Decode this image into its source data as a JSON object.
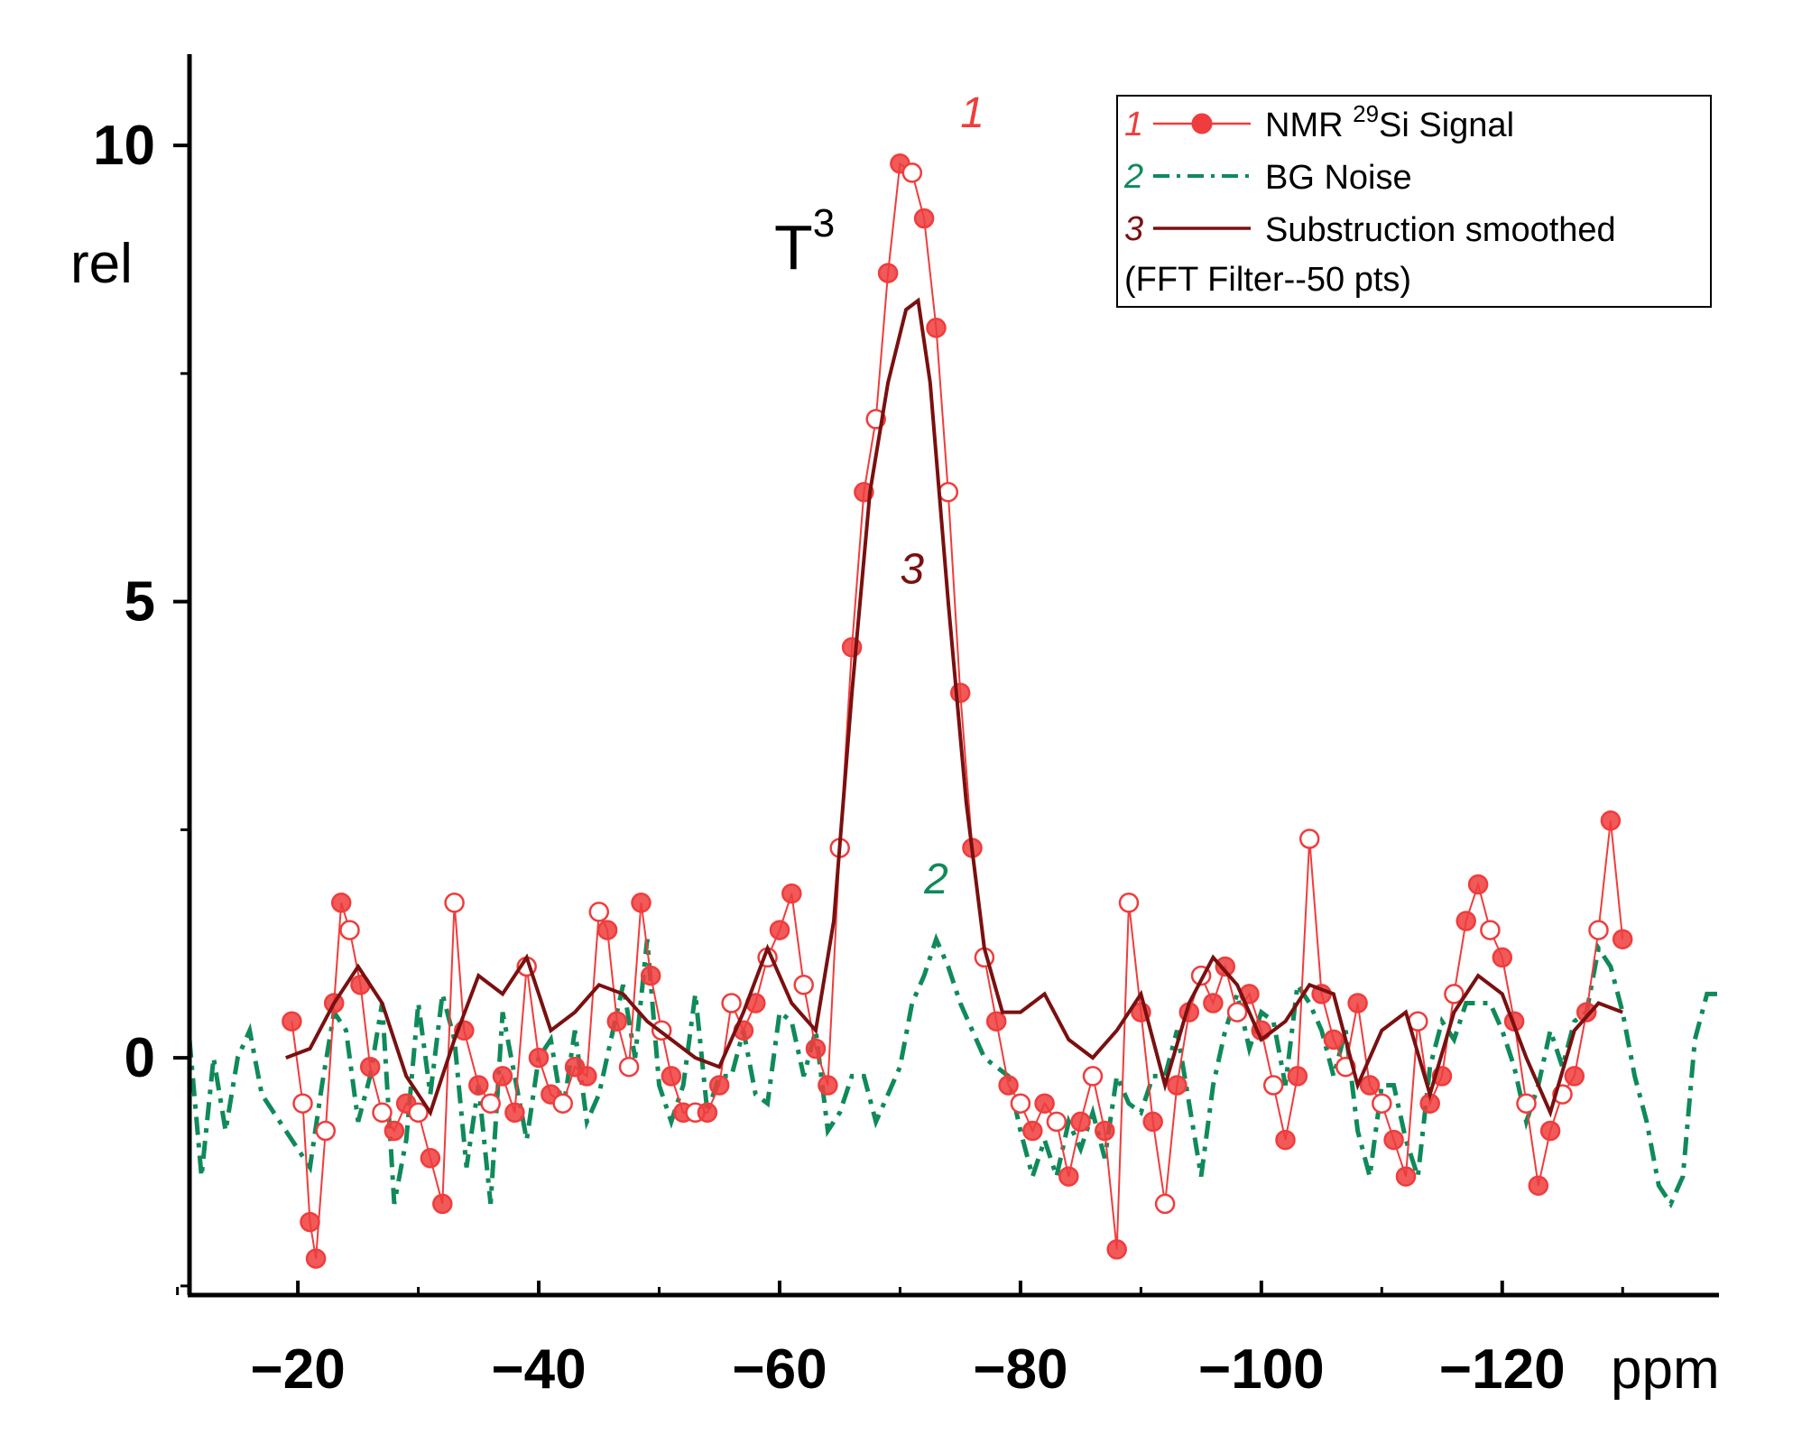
{
  "chart_data": {
    "type": "line",
    "title": "",
    "xlabel": "ppm",
    "ylabel": "rel",
    "xlim": [
      -11,
      -138
    ],
    "ylim": [
      -2.6,
      11.0
    ],
    "x_ticks": [
      -20,
      -40,
      -60,
      -80,
      -100,
      -120
    ],
    "x_tick_labels": [
      "−20",
      "−40",
      "−60",
      "−80",
      "−100",
      "−120"
    ],
    "y_ticks": [
      0,
      5,
      10
    ],
    "y_tick_labels": [
      "0",
      "5",
      "10"
    ],
    "annotation": {
      "text": "T",
      "superscript": "3",
      "x": -62,
      "y": 9.0
    },
    "series": [
      {
        "id": "1",
        "name": "NMR ",
        "name_sup": "29",
        "name_rest": "Si Signal",
        "color": "#f03c3c",
        "style": "line-circles",
        "label_pos": {
          "x": -75,
          "y": 10.2
        },
        "x": [
          -19.5,
          -20.4,
          -21.0,
          -21.5,
          -22.3,
          -23.0,
          -23.6,
          -24.3,
          -25.2,
          -26.0,
          -27.0,
          -28.0,
          -29.0,
          -30.0,
          -31.0,
          -32.0,
          -33.0,
          -33.8,
          -35.0,
          -36.0,
          -37.0,
          -38.0,
          -39.0,
          -40.0,
          -41.0,
          -42.0,
          -43.0,
          -44.0,
          -45.0,
          -45.7,
          -46.5,
          -47.5,
          -48.5,
          -49.3,
          -50.2,
          -51.0,
          -52.0,
          -53.0,
          -54.0,
          -55.0,
          -56.0,
          -57.0,
          -58.0,
          -59.0,
          -60.0,
          -61.0,
          -62.0,
          -63.0,
          -64.0,
          -65.0,
          -66.0,
          -67.0,
          -68.0,
          -69.0,
          -70.0,
          -71.0,
          -72.0,
          -73.0,
          -74.0,
          -75.0,
          -76.0,
          -77.0,
          -78.0,
          -79.0,
          -80.0,
          -81.0,
          -82.0,
          -83.0,
          -84.0,
          -85.0,
          -86.0,
          -87.0,
          -88.0,
          -89.0,
          -90.0,
          -91.0,
          -92.0,
          -93.0,
          -94.0,
          -95.0,
          -96.0,
          -97.0,
          -98.0,
          -99.0,
          -100.0,
          -101.0,
          -102.0,
          -103.0,
          -104.0,
          -105.0,
          -106.0,
          -107.0,
          -108.0,
          -109.0,
          -110.0,
          -111.0,
          -112.0,
          -113.0,
          -114.0,
          -115.0,
          -116.0,
          -117.0,
          -118.0,
          -119.0,
          -120.0,
          -121.0,
          -122.0,
          -123.0,
          -124.0,
          -125.0,
          -126.0,
          -127.0,
          -128.0,
          -129.0,
          -130.0
        ],
        "y": [
          0.4,
          -0.5,
          -1.8,
          -2.2,
          -0.8,
          0.6,
          1.7,
          1.4,
          0.8,
          -0.1,
          -0.6,
          -0.8,
          -0.5,
          -0.6,
          -1.1,
          -1.6,
          1.7,
          0.3,
          -0.3,
          -0.5,
          -0.2,
          -0.6,
          1.0,
          0.0,
          -0.4,
          -0.5,
          -0.1,
          -0.2,
          1.6,
          1.4,
          0.4,
          -0.1,
          1.7,
          0.9,
          0.3,
          -0.2,
          -0.6,
          -0.6,
          -0.6,
          -0.3,
          0.6,
          0.3,
          0.6,
          1.1,
          1.4,
          1.8,
          0.8,
          0.1,
          -0.3,
          2.3,
          4.5,
          6.2,
          7.0,
          8.6,
          9.8,
          9.7,
          9.2,
          8.0,
          6.2,
          4.0,
          2.3,
          1.1,
          0.4,
          -0.3,
          -0.5,
          -0.8,
          -0.5,
          -0.7,
          -1.3,
          -0.7,
          -0.2,
          -0.8,
          -2.1,
          1.7,
          0.5,
          -0.7,
          -1.6,
          -0.3,
          0.5,
          0.9,
          0.6,
          1.0,
          0.5,
          0.7,
          0.3,
          -0.3,
          -0.9,
          -0.2,
          2.4,
          0.7,
          0.2,
          -0.1,
          0.6,
          -0.3,
          -0.5,
          -0.9,
          -1.3,
          0.4,
          -0.5,
          -0.2,
          0.7,
          1.5,
          1.9,
          1.4,
          1.1,
          0.4,
          -0.5,
          -1.4,
          -0.8,
          -0.4,
          -0.2,
          0.5,
          1.4,
          2.6,
          1.3
        ],
        "legend_label_index": 0
      },
      {
        "id": "2",
        "name": "BG Noise",
        "color": "#0f8a5a",
        "style": "dash-dot",
        "label_pos": {
          "x": -72,
          "y": 1.8
        },
        "x": [
          -11.0,
          -12.0,
          -13.0,
          -14.0,
          -15.0,
          -16.0,
          -17.0,
          -18.0,
          -19.0,
          -20.0,
          -21.0,
          -22.0,
          -23.0,
          -24.0,
          -25.0,
          -26.0,
          -27.0,
          -28.0,
          -29.0,
          -30.0,
          -31.0,
          -32.0,
          -33.0,
          -34.0,
          -35.0,
          -36.0,
          -37.0,
          -38.0,
          -39.0,
          -40.0,
          -41.0,
          -42.0,
          -43.0,
          -44.0,
          -45.0,
          -46.0,
          -47.0,
          -48.0,
          -49.0,
          -50.0,
          -51.0,
          -52.0,
          -53.0,
          -54.0,
          -55.0,
          -56.0,
          -57.0,
          -58.0,
          -59.0,
          -60.0,
          -61.0,
          -62.0,
          -63.0,
          -64.0,
          -65.0,
          -66.0,
          -67.0,
          -68.0,
          -69.0,
          -70.0,
          -71.0,
          -72.0,
          -73.0,
          -74.0,
          -75.0,
          -76.0,
          -77.0,
          -78.0,
          -79.0,
          -80.0,
          -81.0,
          -82.0,
          -83.0,
          -84.0,
          -85.0,
          -86.0,
          -87.0,
          -88.0,
          -89.0,
          -90.0,
          -91.0,
          -92.0,
          -93.0,
          -94.0,
          -95.0,
          -96.0,
          -97.0,
          -98.0,
          -99.0,
          -100.0,
          -101.0,
          -102.0,
          -103.0,
          -104.0,
          -105.0,
          -106.0,
          -107.0,
          -108.0,
          -109.0,
          -110.0,
          -111.0,
          -112.0,
          -113.0,
          -114.0,
          -115.0,
          -116.0,
          -117.0,
          -118.0,
          -119.0,
          -120.0,
          -121.0,
          -122.0,
          -123.0,
          -124.0,
          -125.0,
          -126.0,
          -127.0,
          -128.0,
          -129.0,
          -130.0,
          -131.0,
          -132.0,
          -133.0,
          -134.0,
          -135.0,
          -136.0,
          -137.0,
          -138.0
        ],
        "y": [
          0.2,
          -1.3,
          0.0,
          -0.8,
          0.0,
          0.3,
          -0.4,
          -0.6,
          -0.8,
          -1.0,
          -1.2,
          -0.3,
          0.5,
          0.3,
          -0.7,
          -0.2,
          0.6,
          -1.6,
          -0.9,
          0.6,
          -0.4,
          0.7,
          0.2,
          -1.2,
          -0.3,
          -1.6,
          0.5,
          -0.2,
          -0.9,
          0.0,
          0.2,
          -0.6,
          0.3,
          -0.7,
          -0.4,
          0.2,
          0.8,
          0.0,
          1.3,
          -0.3,
          -0.7,
          -0.3,
          0.7,
          -0.6,
          -0.2,
          -0.2,
          0.3,
          -0.4,
          -0.5,
          0.5,
          0.4,
          -0.2,
          0.3,
          -0.8,
          -0.6,
          -0.2,
          -0.2,
          -0.7,
          -0.4,
          -0.1,
          0.6,
          0.9,
          1.3,
          1.0,
          0.6,
          0.3,
          0.0,
          -0.1,
          -0.2,
          -0.8,
          -1.3,
          -0.9,
          -1.3,
          -0.7,
          -1.0,
          -0.6,
          -1.1,
          -0.2,
          -0.5,
          -0.6,
          -0.2,
          -0.2,
          0.3,
          -0.5,
          -1.3,
          -0.3,
          0.3,
          0.7,
          0.1,
          0.5,
          0.4,
          -0.3,
          0.8,
          0.6,
          0.3,
          -0.2,
          0.3,
          -0.8,
          -1.3,
          -0.3,
          -0.3,
          -0.9,
          -1.3,
          -0.1,
          0.4,
          0.2,
          0.6,
          0.6,
          0.6,
          0.3,
          -0.1,
          -0.7,
          -0.3,
          0.3,
          -0.1,
          0.4,
          0.5,
          1.2,
          1.0,
          0.5,
          -0.2,
          -0.7,
          -1.4,
          -1.6,
          -1.3,
          0.2,
          0.7,
          0.7
        ],
        "legend_label_index": 1
      },
      {
        "id": "3",
        "name": "Substruction smoothed",
        "name_extra": "(FFT Filter--50 pts)",
        "color": "#7a1010",
        "style": "solid",
        "label_pos": {
          "x": -70,
          "y": 5.2
        },
        "x": [
          -19.0,
          -21.0,
          -23.0,
          -25.0,
          -27.0,
          -29.0,
          -31.0,
          -33.0,
          -35.0,
          -37.0,
          -39.0,
          -41.0,
          -43.0,
          -45.0,
          -47.0,
          -49.0,
          -51.0,
          -53.0,
          -55.0,
          -57.0,
          -59.0,
          -61.0,
          -63.0,
          -64.5,
          -66.0,
          -67.5,
          -69.0,
          -70.5,
          -71.5,
          -72.5,
          -74.0,
          -75.5,
          -77.0,
          -78.5,
          -80.0,
          -82.0,
          -84.0,
          -86.0,
          -88.0,
          -90.0,
          -92.0,
          -94.0,
          -96.0,
          -98.0,
          -100.0,
          -102.0,
          -104.0,
          -106.0,
          -108.0,
          -110.0,
          -112.0,
          -114.0,
          -116.0,
          -118.0,
          -120.0,
          -122.0,
          -124.0,
          -126.0,
          -128.0,
          -130.0
        ],
        "y": [
          0.0,
          0.1,
          0.6,
          1.0,
          0.6,
          -0.2,
          -0.6,
          0.2,
          0.9,
          0.7,
          1.1,
          0.3,
          0.5,
          0.8,
          0.7,
          0.4,
          0.2,
          0.0,
          -0.1,
          0.5,
          1.2,
          0.6,
          0.3,
          1.5,
          4.0,
          6.2,
          7.4,
          8.2,
          8.3,
          7.4,
          5.0,
          2.8,
          1.2,
          0.5,
          0.5,
          0.7,
          0.2,
          0.0,
          0.3,
          0.7,
          -0.3,
          0.6,
          1.1,
          0.8,
          0.2,
          0.4,
          0.8,
          0.7,
          -0.3,
          0.3,
          0.5,
          -0.4,
          0.5,
          0.9,
          0.7,
          0.0,
          -0.6,
          0.3,
          0.6,
          0.5
        ],
        "legend_label_index": 2
      }
    ],
    "legend": {
      "position": "top-right"
    }
  }
}
